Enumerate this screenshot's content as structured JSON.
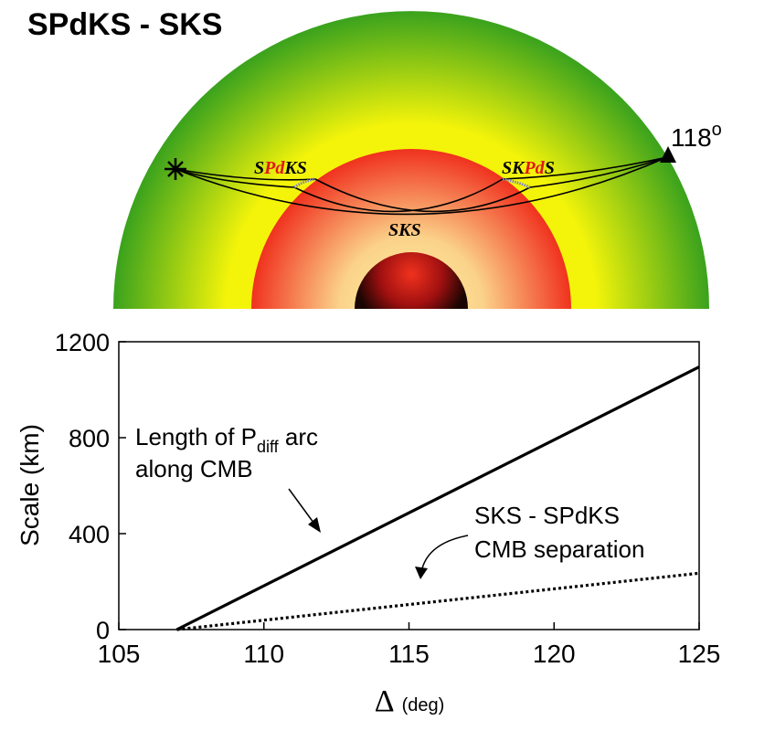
{
  "title": "SPdKS - SKS",
  "diagram": {
    "phase_left_parts": [
      "S",
      "Pd",
      "KS"
    ],
    "phase_right_parts": [
      "SK",
      "Pd",
      "S"
    ],
    "phase_bottom": "SKS",
    "distance_base": "118",
    "distance_sup": "o",
    "colors": {
      "mantle_outer": "#3aa21d",
      "mantle_inner": "#f4f40a",
      "outer_core_edge": "#f0321e",
      "outer_core_center": "#fbf5a2",
      "inner_core_center": "#f0321e",
      "inner_core_edge": "#1a0502",
      "phase_highlight": "#e21818",
      "diffracted_arc": "#8080c0"
    }
  },
  "chart_data": {
    "type": "line",
    "xlabel_symbol": "Δ",
    "xlabel_unit": "(deg)",
    "ylabel": "Scale (km)",
    "xlim": [
      105,
      125
    ],
    "ylim": [
      0,
      1200
    ],
    "xticks": [
      "105",
      "110",
      "115",
      "120",
      "125"
    ],
    "yticks": [
      "0",
      "400",
      "800",
      "1200"
    ],
    "series": [
      {
        "style": "solid",
        "x": [
          107,
          125
        ],
        "y": [
          0,
          1095
        ]
      },
      {
        "style": "dotted",
        "x": [
          107,
          125
        ],
        "y": [
          0,
          235
        ]
      }
    ],
    "annotations": {
      "solid_line_1a": "Length of P",
      "solid_line_1b": "diff",
      "solid_line_1c": " arc",
      "solid_line_2": "along CMB",
      "dotted_line_1": "SKS - SPdKS",
      "dotted_line_2": "CMB separation"
    }
  }
}
